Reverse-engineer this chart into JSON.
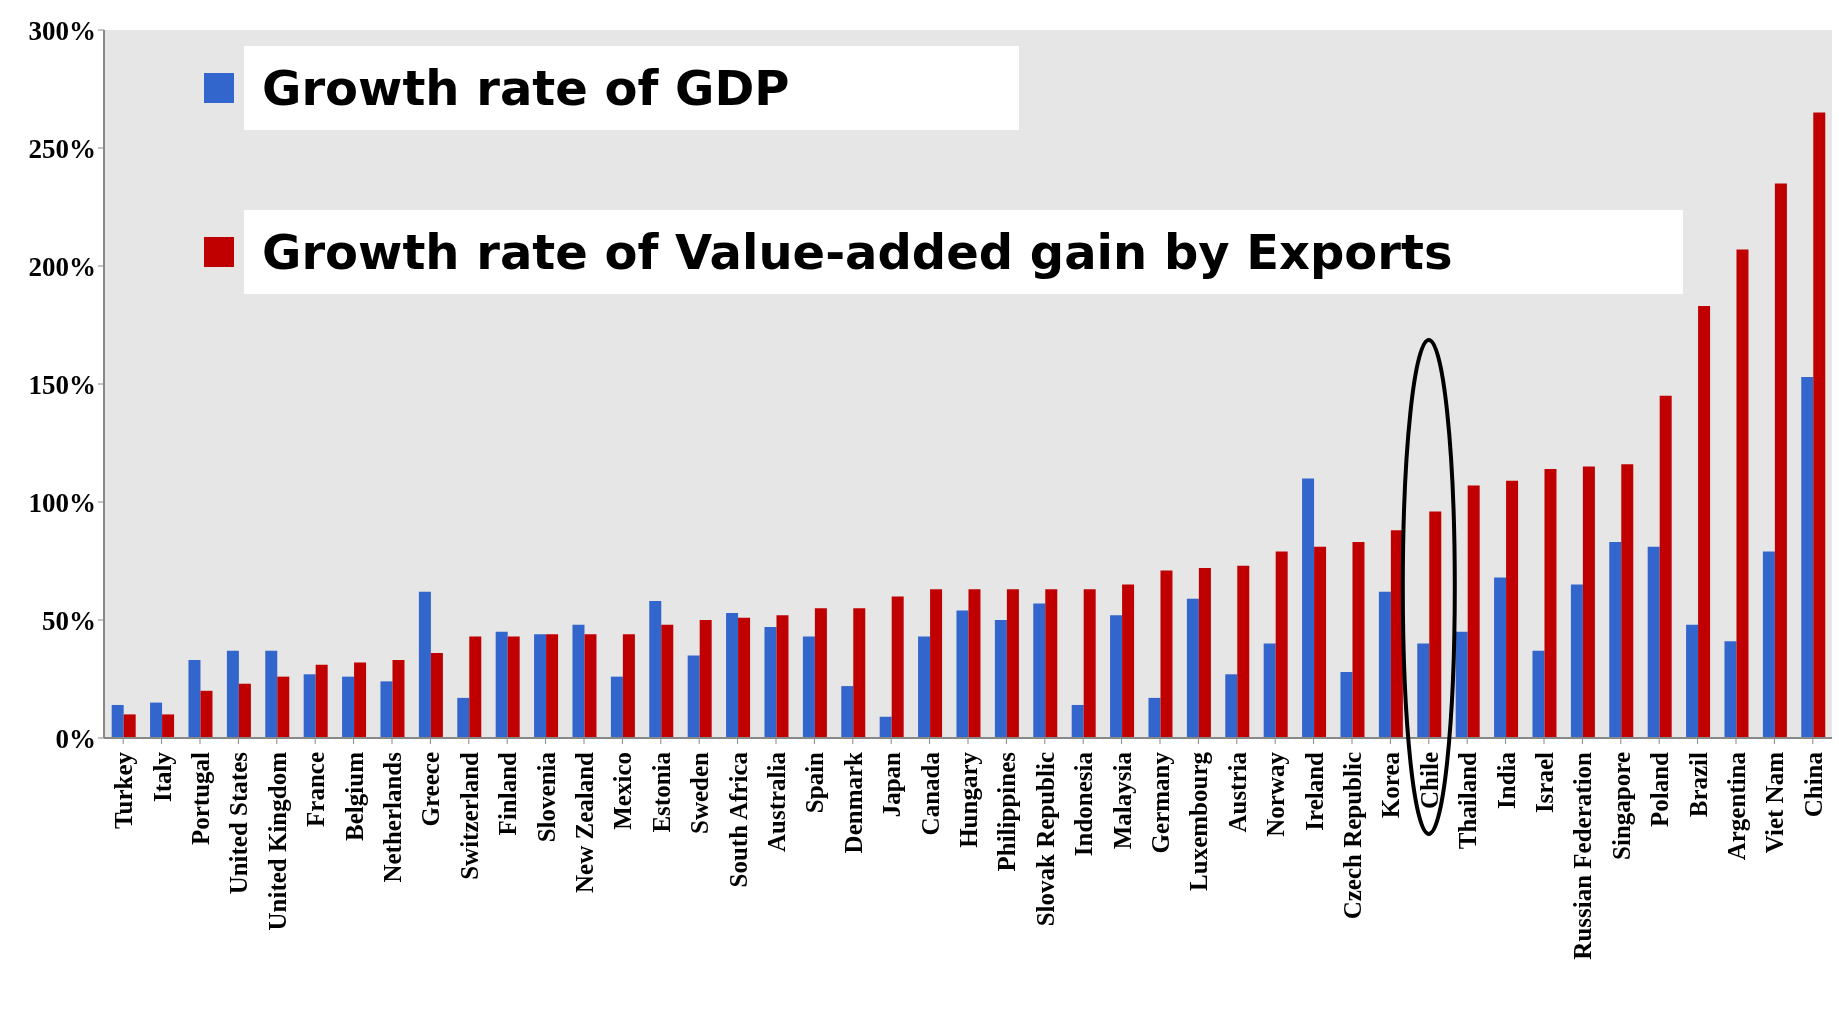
{
  "chart_data": {
    "type": "bar",
    "categories": [
      "Turkey",
      "Italy",
      "Portugal",
      "United States",
      "United Kingdom",
      "France",
      "Belgium",
      "Netherlands",
      "Greece",
      "Switzerland",
      "Finland",
      "Slovenia",
      "New Zealand",
      "Mexico",
      "Estonia",
      "Sweden",
      "South Africa",
      "Australia",
      "Spain",
      "Denmark",
      "Japan",
      "Canada",
      "Hungary",
      "Philippines",
      "Slovak Republic",
      "Indonesia",
      "Malaysia",
      "Germany",
      "Luxembourg",
      "Austria",
      "Norway",
      "Ireland",
      "Czech Republic",
      "Korea",
      "Chile",
      "Thailand",
      "India",
      "Israel",
      "Russian Federation",
      "Singapore",
      "Poland",
      "Brazil",
      "Argentina",
      "Viet Nam",
      "China"
    ],
    "series": [
      {
        "name": "Growth rate of GDP",
        "color": "#3366cc",
        "values": [
          14,
          15,
          33,
          37,
          37,
          27,
          26,
          24,
          62,
          17,
          45,
          44,
          48,
          26,
          58,
          35,
          53,
          47,
          43,
          22,
          9,
          43,
          54,
          50,
          57,
          14,
          52,
          17,
          59,
          27,
          40,
          110,
          28,
          62,
          40,
          45,
          68,
          37,
          65,
          83,
          81,
          48,
          41,
          79,
          153
        ]
      },
      {
        "name": "Growth rate of Value-added gain by Exports",
        "color": "#c00000",
        "values": [
          10,
          10,
          20,
          23,
          26,
          31,
          32,
          33,
          36,
          43,
          43,
          44,
          44,
          44,
          48,
          50,
          51,
          52,
          55,
          55,
          60,
          63,
          63,
          63,
          63,
          63,
          65,
          71,
          72,
          73,
          79,
          81,
          83,
          88,
          96,
          107,
          109,
          114,
          115,
          116,
          145,
          183,
          207,
          235,
          265
        ]
      }
    ],
    "ylim": [
      0,
      300
    ],
    "yticks": [
      {
        "value": 0,
        "label": "0%"
      },
      {
        "value": 50,
        "label": "50%"
      },
      {
        "value": 100,
        "label": "100%"
      },
      {
        "value": 150,
        "label": "150%"
      },
      {
        "value": 200,
        "label": "200%"
      },
      {
        "value": 250,
        "label": "250%"
      },
      {
        "value": 300,
        "label": "300%"
      }
    ],
    "legend": "top left"
  }
}
